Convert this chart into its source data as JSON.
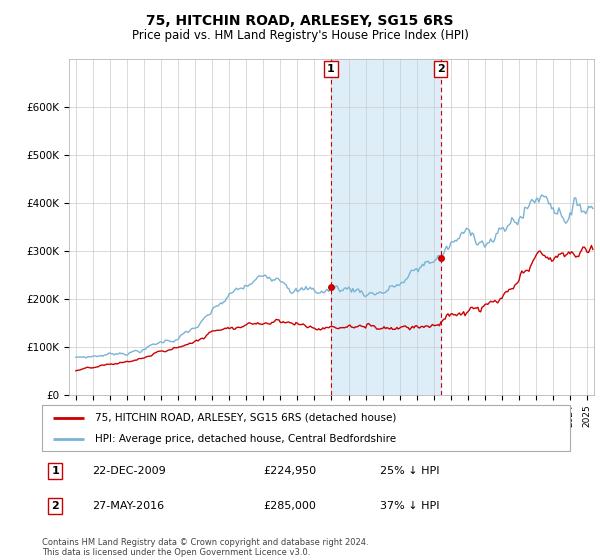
{
  "title": "75, HITCHIN ROAD, ARLESEY, SG15 6RS",
  "subtitle": "Price paid vs. HM Land Registry's House Price Index (HPI)",
  "hpi_color": "#7ab3d4",
  "price_color": "#cc0000",
  "shaded_color": "#ddeef8",
  "vline_color": "#cc0000",
  "transaction1_x": 2009.97,
  "transaction1_y": 224950,
  "transaction2_x": 2016.41,
  "transaction2_y": 285000,
  "legend_line1": "75, HITCHIN ROAD, ARLESEY, SG15 6RS (detached house)",
  "legend_line2": "HPI: Average price, detached house, Central Bedfordshire",
  "annotation1_date": "22-DEC-2009",
  "annotation1_price": "£224,950",
  "annotation1_pct": "25% ↓ HPI",
  "annotation2_date": "27-MAY-2016",
  "annotation2_price": "£285,000",
  "annotation2_pct": "37% ↓ HPI",
  "footer": "Contains HM Land Registry data © Crown copyright and database right 2024.\nThis data is licensed under the Open Government Licence v3.0.",
  "ylim": [
    0,
    700000
  ],
  "yticks": [
    0,
    100000,
    200000,
    300000,
    400000,
    500000,
    600000
  ],
  "ytick_labels": [
    "£0",
    "£100K",
    "£200K",
    "£300K",
    "£400K",
    "£500K",
    "£600K"
  ],
  "xlim": [
    1994.6,
    2025.4
  ],
  "shaded_x_start": 2009.97,
  "shaded_x_end": 2016.41
}
